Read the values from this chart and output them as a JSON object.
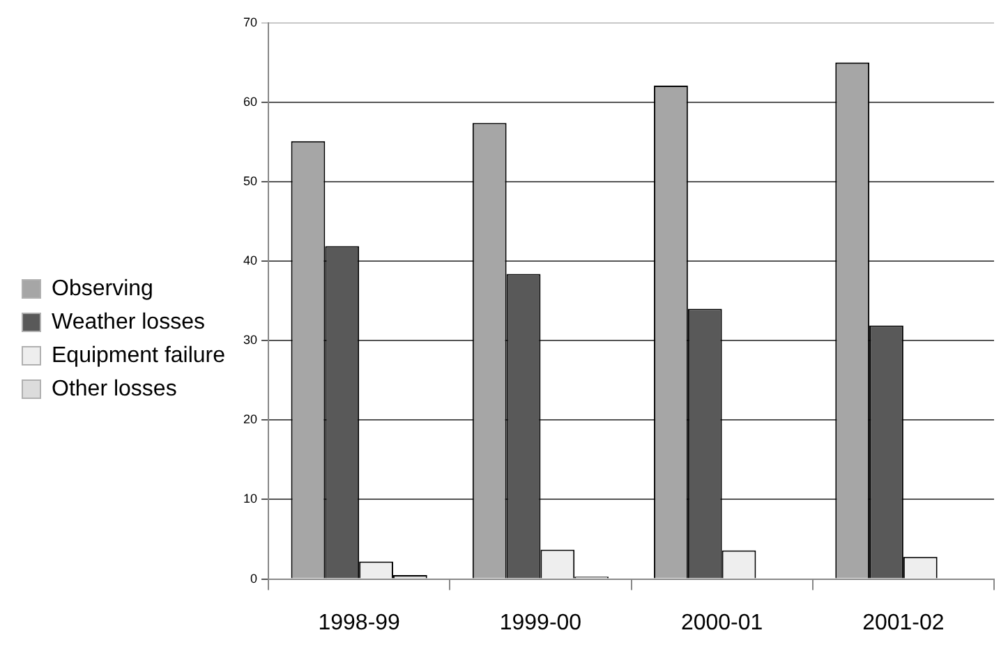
{
  "chart_data": {
    "type": "bar",
    "categories": [
      "1998-99",
      "1999-00",
      "2000-01",
      "2001-02"
    ],
    "series": [
      {
        "name": "Observing",
        "color": "#a6a6a6",
        "values": [
          55.1,
          57.4,
          62.1,
          65
        ]
      },
      {
        "name": "Weather losses",
        "color": "#595959",
        "values": [
          41.9,
          38.4,
          34,
          31.9
        ]
      },
      {
        "name": "Equipment failure",
        "color": "#eeeeee",
        "values": [
          2.2,
          3.7,
          3.6,
          2.8
        ]
      },
      {
        "name": "Other losses",
        "color": "#dcdcdc",
        "values": [
          0.5,
          0.3,
          0.1,
          0.1
        ]
      }
    ],
    "ylim": [
      0,
      70
    ],
    "yticks": [
      0,
      10,
      20,
      30,
      40,
      50,
      60,
      70
    ],
    "grid": "y",
    "legend": "left"
  }
}
